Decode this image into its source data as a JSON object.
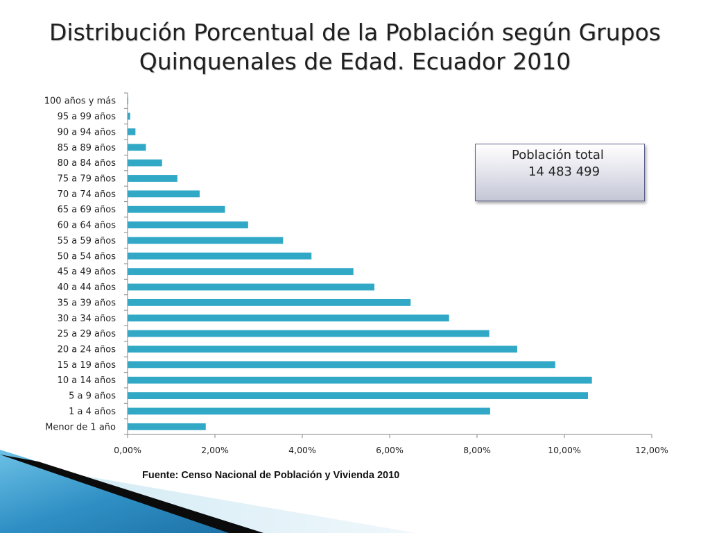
{
  "title": {
    "line1": "Distribución Porcentual de la Población según Grupos",
    "line2": "Quinquenales de Edad. Ecuador 2010"
  },
  "total_box": {
    "label": "Población total",
    "value": "14 483 499"
  },
  "source": "Fuente: Censo Nacional de Población y Vivienda 2010",
  "colors": {
    "bar": "#31A9C6",
    "axis": "#868686",
    "deco_dark": "#0b0b0b",
    "deco_blue": "#3b9fd0"
  },
  "chart_data": {
    "type": "bar",
    "orientation": "horizontal",
    "title": "",
    "xlabel": "",
    "ylabel": "",
    "xlim": [
      0,
      12
    ],
    "grid": false,
    "categories": [
      "Menor de 1 año",
      "1 a 4 años",
      "5 a 9 años",
      "10 a 14 años",
      "15 a 19 años",
      "20 a 24 años",
      "25 a 29 años",
      "30 a 34 años",
      "35 a 39 años",
      "40 a 44 años",
      "45 a 49 años",
      "50 a 54 años",
      "55 a 59 años",
      "60 a 64 años",
      "65 a 69 años",
      "70 a 74 años",
      "75 a 79 años",
      "80 a 84 años",
      "85 a 89 años",
      "90 a 94 años",
      "95 a 99 años",
      "100 años y más"
    ],
    "values": [
      1.79,
      8.3,
      10.54,
      10.63,
      9.79,
      8.92,
      8.28,
      7.36,
      6.48,
      5.65,
      5.17,
      4.21,
      3.56,
      2.76,
      2.23,
      1.65,
      1.14,
      0.79,
      0.42,
      0.18,
      0.06,
      0.01
    ],
    "ticks": [
      {
        "value": 0,
        "label": "0,00%"
      },
      {
        "value": 2,
        "label": "2,00%"
      },
      {
        "value": 4,
        "label": "4,00%"
      },
      {
        "value": 6,
        "label": "6,00%"
      },
      {
        "value": 8,
        "label": "8,00%"
      },
      {
        "value": 10,
        "label": "10,00%"
      },
      {
        "value": 12,
        "label": "12,00%"
      }
    ]
  }
}
